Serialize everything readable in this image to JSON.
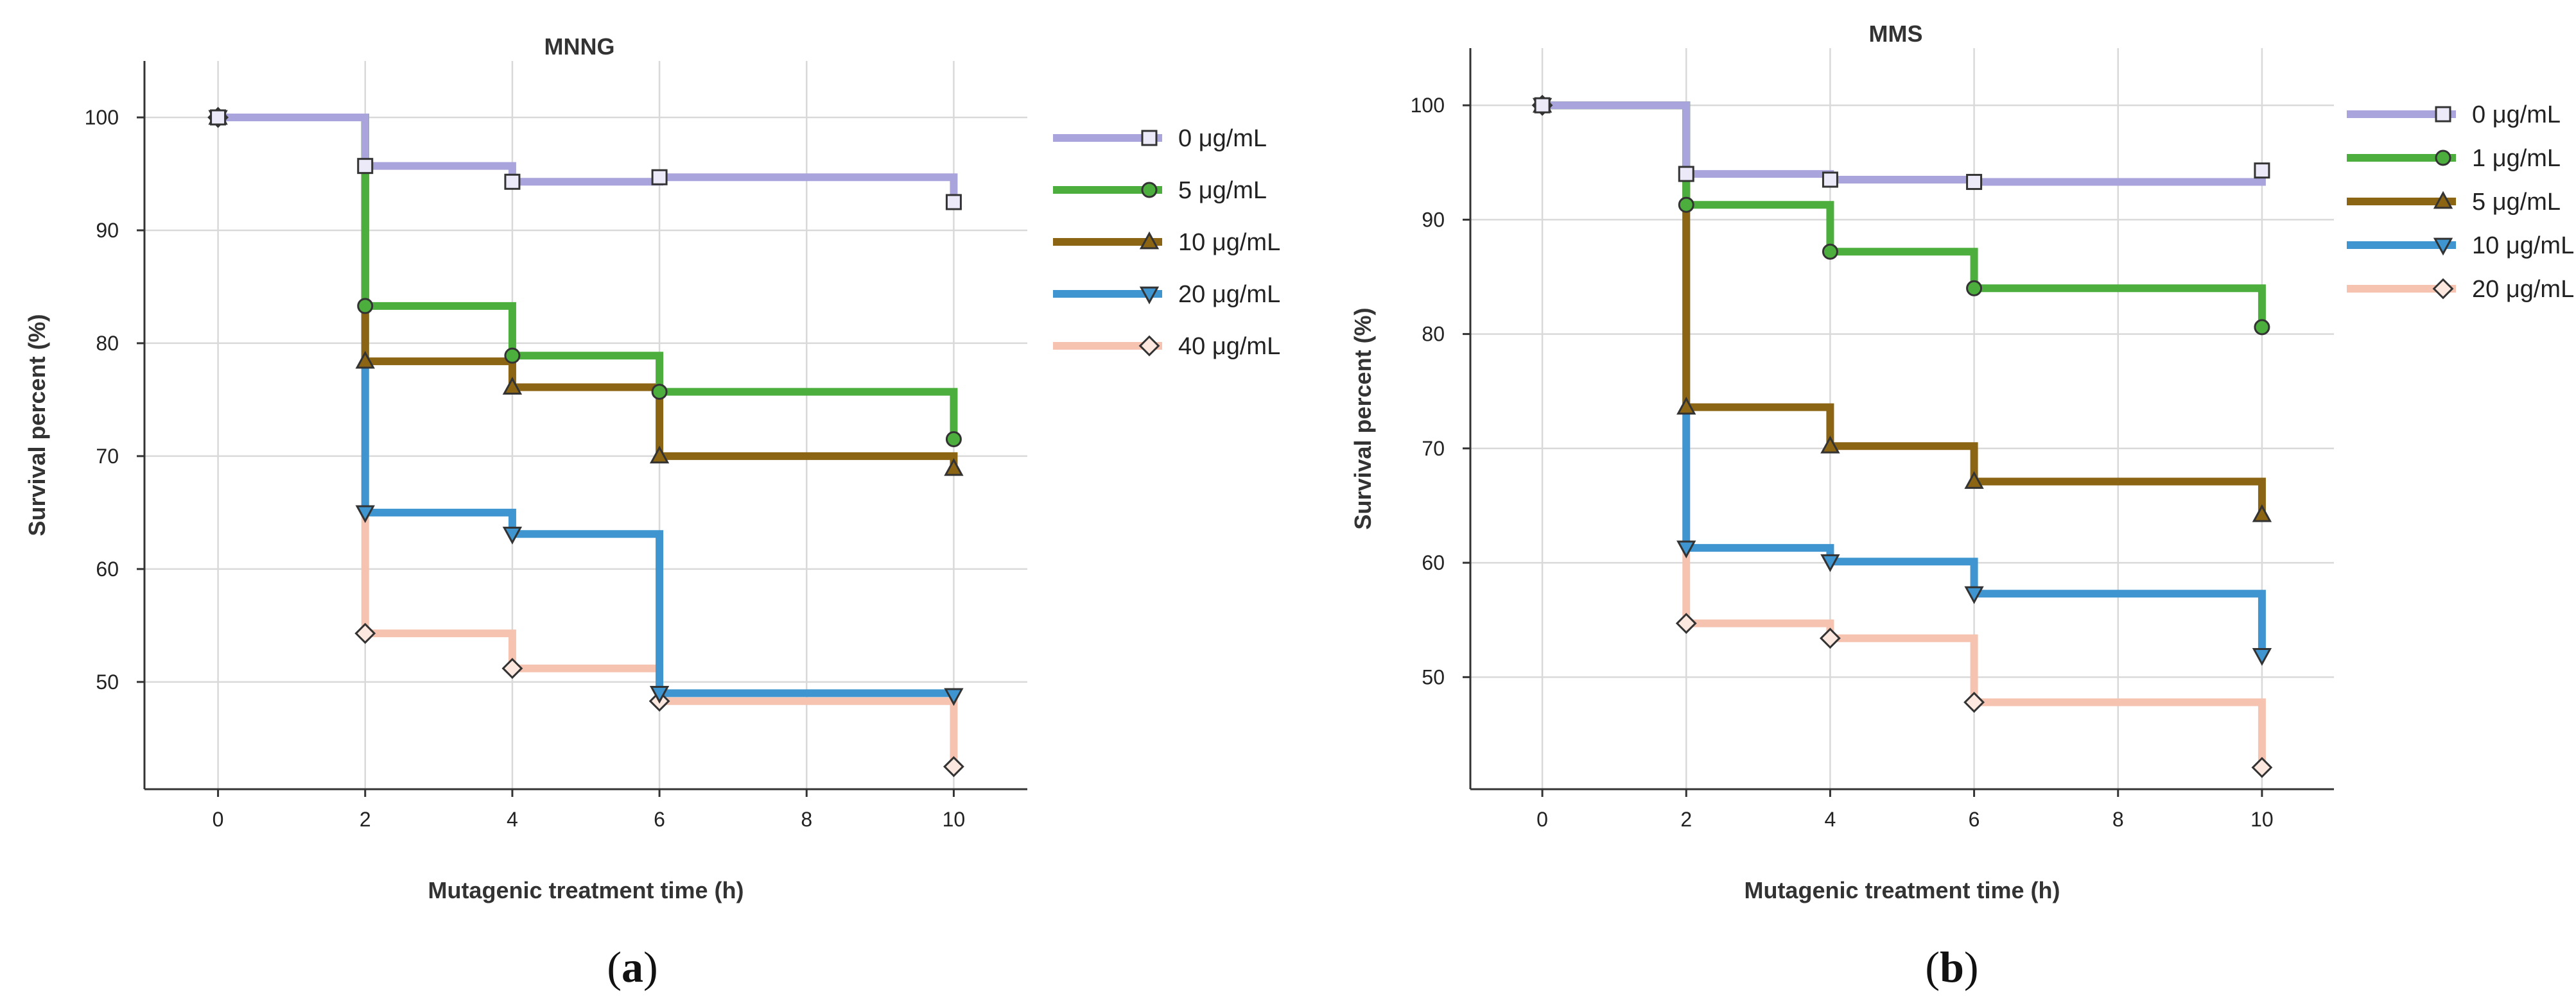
{
  "chart_data": [
    {
      "type": "line",
      "step": true,
      "panel_label": "a",
      "title": "MNNG",
      "xlabel": "Mutagenic treatment time (h)",
      "ylabel": "Survival percent (%)",
      "xlim": [
        -1,
        11
      ],
      "ylim": [
        40.5,
        105
      ],
      "xticks": [
        "0",
        "2",
        "4",
        "6",
        "8",
        "10"
      ],
      "yticks": [
        "50",
        "60",
        "70",
        "80",
        "90",
        "100"
      ],
      "grid": true,
      "legend_position": "top-right",
      "series": [
        {
          "name": "0 μg/mL",
          "color": "#a9a4db",
          "marker": "square",
          "x": [
            0,
            2,
            4,
            6,
            10
          ],
          "y": [
            100,
            95.7,
            94.3,
            94.7,
            92.5
          ]
        },
        {
          "name": "5 μg/mL",
          "color": "#4cae3d",
          "marker": "circle",
          "x": [
            0,
            2,
            4,
            6,
            10
          ],
          "y": [
            100,
            83.3,
            78.9,
            75.7,
            71.5
          ]
        },
        {
          "name": "10 μg/mL",
          "color": "#8b6414",
          "marker": "triangle-up",
          "x": [
            0,
            2,
            4,
            6,
            10
          ],
          "y": [
            100,
            78.4,
            76.1,
            70.0,
            68.9
          ]
        },
        {
          "name": "20 μg/mL",
          "color": "#3e95d0",
          "marker": "triangle-down",
          "x": [
            0,
            2,
            4,
            6,
            10
          ],
          "y": [
            100,
            65.0,
            63.1,
            49.0,
            48.8
          ]
        },
        {
          "name": "40 μg/mL",
          "color": "#f6c3b0",
          "marker": "diamond",
          "x": [
            0,
            2,
            4,
            6,
            10
          ],
          "y": [
            100,
            54.3,
            51.2,
            48.3,
            42.5
          ]
        }
      ]
    },
    {
      "type": "line",
      "step": true,
      "panel_label": "b",
      "title": "MMS",
      "xlabel": "Mutagenic treatment time (h)",
      "ylabel": "Survival percent (%)",
      "xlim": [
        -1,
        11
      ],
      "ylim": [
        40.2,
        105
      ],
      "xticks": [
        "0",
        "2",
        "4",
        "6",
        "8",
        "10"
      ],
      "yticks": [
        "50",
        "60",
        "70",
        "80",
        "90",
        "100"
      ],
      "grid": true,
      "legend_position": "top-right",
      "series": [
        {
          "name": "0 μg/mL",
          "color": "#a9a4db",
          "marker": "square",
          "x": [
            0,
            2,
            4,
            6,
            10
          ],
          "y": [
            100,
            94.0,
            93.5,
            93.3,
            94.3
          ]
        },
        {
          "name": "1 μg/mL",
          "color": "#4cae3d",
          "marker": "circle",
          "x": [
            0,
            2,
            4,
            6,
            10
          ],
          "y": [
            100,
            91.3,
            87.2,
            84.0,
            80.6
          ]
        },
        {
          "name": "5 μg/mL",
          "color": "#8b6414",
          "marker": "triangle-up",
          "x": [
            0,
            2,
            4,
            6,
            10
          ],
          "y": [
            100,
            73.6,
            70.2,
            67.1,
            64.2
          ]
        },
        {
          "name": "10 μg/mL",
          "color": "#3e95d0",
          "marker": "triangle-down",
          "x": [
            0,
            2,
            4,
            6,
            10
          ],
          "y": [
            100,
            61.3,
            60.1,
            57.3,
            51.9
          ]
        },
        {
          "name": "20 μg/mL",
          "color": "#f6c3b0",
          "marker": "diamond",
          "x": [
            0,
            2,
            4,
            6,
            10
          ],
          "y": [
            100,
            54.7,
            53.4,
            47.8,
            42.1
          ]
        }
      ]
    }
  ]
}
